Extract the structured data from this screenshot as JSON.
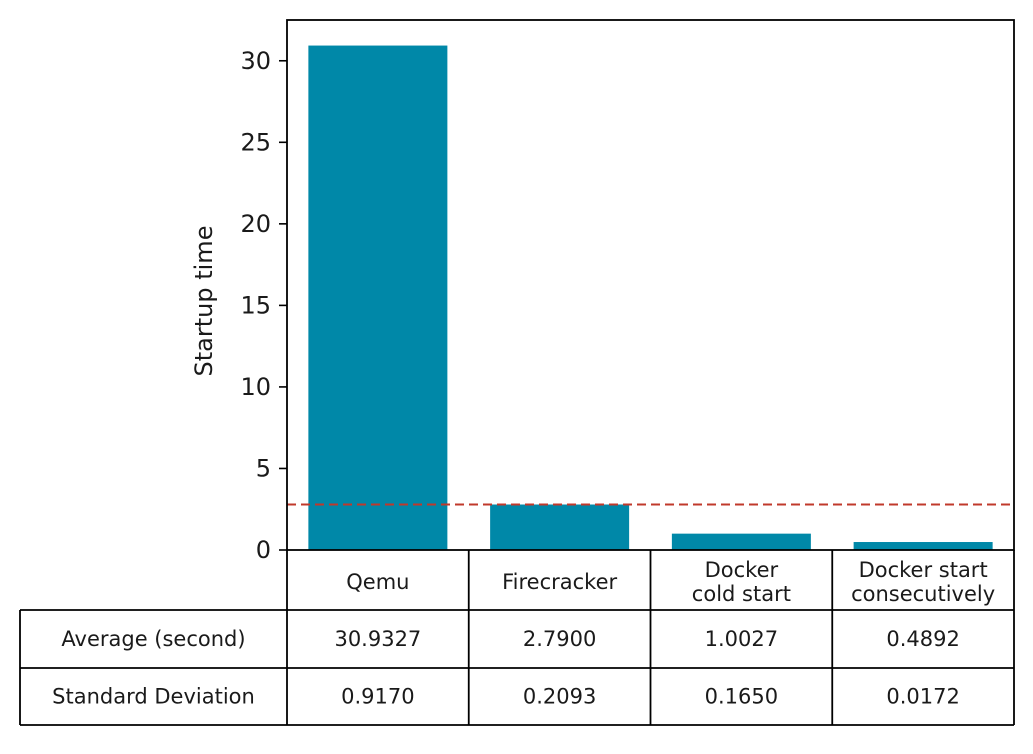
{
  "chart_data": {
    "type": "bar",
    "title": "",
    "xlabel": "",
    "ylabel": "Startup time",
    "ylim": [
      0,
      32.5
    ],
    "yticks": [
      0,
      5,
      10,
      15,
      20,
      25,
      30
    ],
    "categories": [
      [
        "Qemu"
      ],
      [
        "Firecracker"
      ],
      [
        "Docker",
        "cold start"
      ],
      [
        "Docker start",
        "consecutively"
      ]
    ],
    "values": [
      30.9327,
      2.79,
      1.0027,
      0.4892
    ],
    "reference_line": {
      "value": 2.79,
      "style": "dashed",
      "color": "#c0392b"
    },
    "bar_color": "#0088a8",
    "grid": false,
    "legend": "none",
    "table": {
      "rows": [
        {
          "label": "Average (second)",
          "cells": [
            "30.9327",
            "2.7900",
            "1.0027",
            "0.4892"
          ]
        },
        {
          "label": "Standard Deviation",
          "cells": [
            "0.9170",
            "0.2093",
            "0.1650",
            "0.0172"
          ]
        }
      ]
    }
  }
}
